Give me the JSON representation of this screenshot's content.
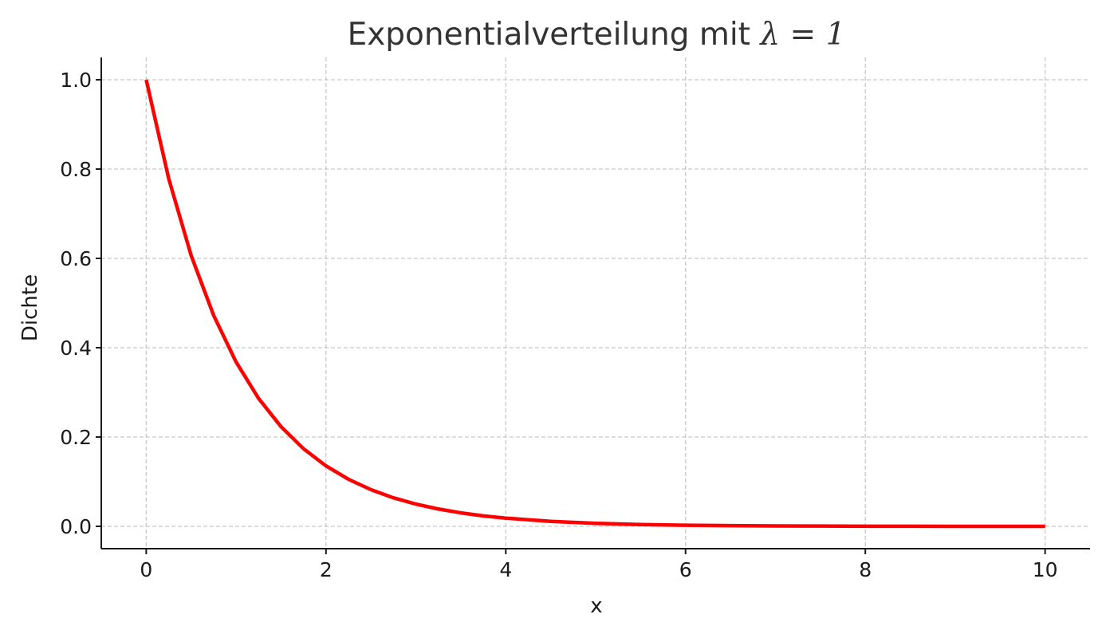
{
  "chart_data": {
    "type": "line",
    "title": "Exponentialverteilung mit ",
    "title_math": "λ = 1",
    "xlabel": "x",
    "ylabel": "Dichte",
    "xlim": [
      -0.5,
      10.5
    ],
    "ylim": [
      -0.05,
      1.05
    ],
    "x_ticks": [
      0,
      2,
      4,
      6,
      8,
      10
    ],
    "y_ticks": [
      0.0,
      0.2,
      0.4,
      0.6,
      0.8,
      1.0
    ],
    "x_tick_labels": [
      "0",
      "2",
      "4",
      "6",
      "8",
      "10"
    ],
    "y_tick_labels": [
      "0.0",
      "0.2",
      "0.4",
      "0.6",
      "0.8",
      "1.0"
    ],
    "grid": true,
    "legend": "none",
    "series": [
      {
        "color": "#ff0000",
        "x": [
          0,
          0.25,
          0.5,
          0.75,
          1,
          1.25,
          1.5,
          1.75,
          2,
          2.25,
          2.5,
          2.75,
          3,
          3.25,
          3.5,
          3.75,
          4,
          4.5,
          5,
          5.5,
          6,
          6.5,
          7,
          7.5,
          8,
          8.5,
          9,
          9.5,
          10
        ],
        "y": [
          1.0,
          0.7788,
          0.6065,
          0.4724,
          0.3679,
          0.2865,
          0.2231,
          0.1738,
          0.1353,
          0.1054,
          0.0821,
          0.0639,
          0.0498,
          0.0388,
          0.0302,
          0.0235,
          0.0183,
          0.0111,
          0.0067,
          0.0041,
          0.0025,
          0.0015,
          0.0009,
          0.0006,
          0.0003,
          0.0002,
          0.0001,
          0.0001,
          0.0
        ]
      }
    ]
  }
}
